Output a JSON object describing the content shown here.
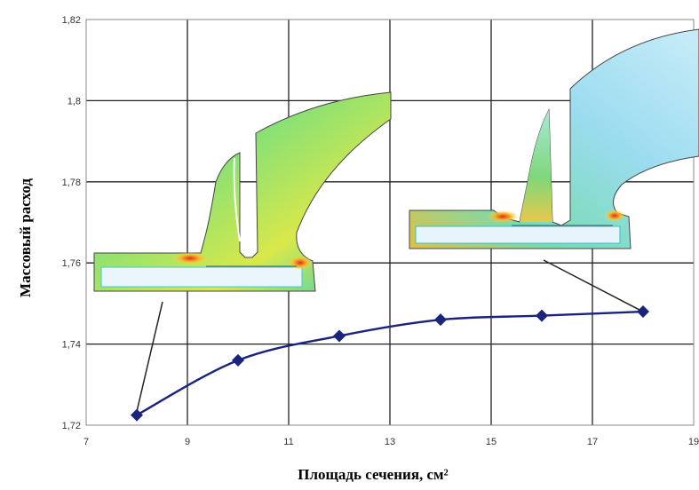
{
  "chart_data": {
    "type": "line",
    "xlabel": "Площадь сечения, см²",
    "ylabel": "Массовый расход",
    "xlim": [
      7,
      19
    ],
    "ylim": [
      1.72,
      1.82
    ],
    "x_ticks": [
      "7",
      "9",
      "11",
      "13",
      "15",
      "17",
      "19"
    ],
    "y_ticks": [
      "1,72",
      "1,74",
      "1,76",
      "1,78",
      "1,8",
      "1,82"
    ],
    "grid": true,
    "series": [
      {
        "x": [
          8,
          10,
          12,
          14,
          16,
          18
        ],
        "y": [
          1.7225,
          1.736,
          1.742,
          1.746,
          1.747,
          1.748
        ],
        "color": "#1a237e",
        "marker": "diamond"
      }
    ],
    "insets": [
      {
        "icon": "flow-simulation-contour-small-section",
        "points_to_x": 8
      },
      {
        "icon": "flow-simulation-contour-large-section",
        "points_to_x": 18
      }
    ]
  }
}
